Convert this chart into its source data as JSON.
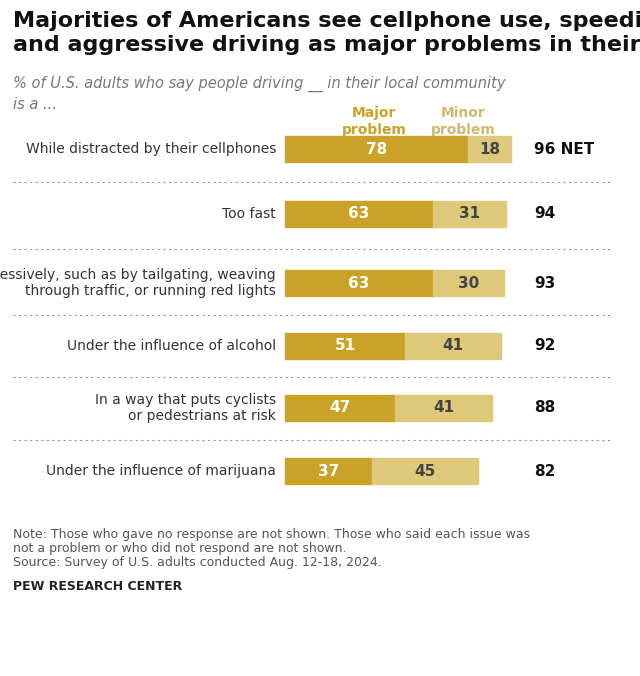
{
  "title": "Majorities of Americans see cellphone use, speeding\nand aggressive driving as major problems in their area",
  "subtitle": "% of U.S. adults who say people driving __ in their local community\nis a ...",
  "categories": [
    "While distracted by their cellphones",
    "Too fast",
    "Aggressively, such as by tailgating, weaving\nthrough traffic, or running red lights",
    "Under the influence of alcohol",
    "In a way that puts cyclists\nor pedestrians at risk",
    "Under the influence of marijuana"
  ],
  "major_values": [
    78,
    63,
    63,
    51,
    47,
    37
  ],
  "minor_values": [
    18,
    31,
    30,
    41,
    41,
    45
  ],
  "net_values": [
    "96 NET",
    "94",
    "93",
    "92",
    "88",
    "82"
  ],
  "major_color": "#C9A227",
  "minor_color": "#DEC97A",
  "legend_major_label": "Major\nproblem",
  "legend_minor_label": "Minor\nproblem",
  "note_line1": "Note: Those who gave no response are not shown. Those who said each issue was",
  "note_line2": "not a problem or who did not respond are not shown.",
  "note_line3": "Source: Survey of U.S. adults conducted Aug. 12-18, 2024.",
  "source_label": "PEW RESEARCH CENTER",
  "background_color": "#ffffff"
}
